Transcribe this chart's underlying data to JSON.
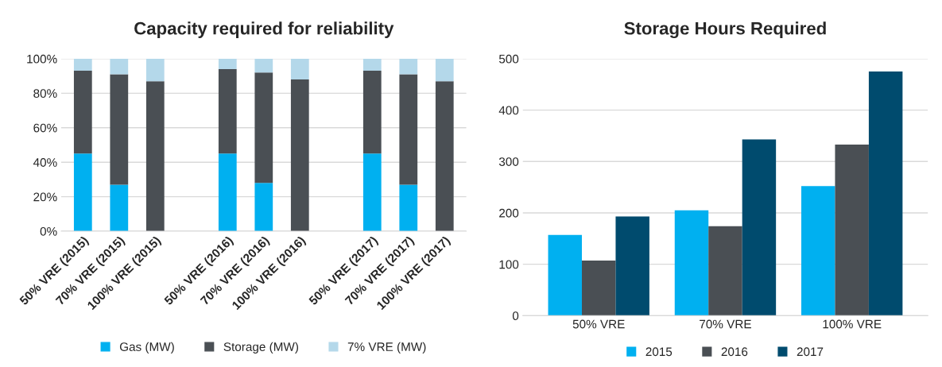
{
  "chart_data": [
    {
      "type": "bar",
      "title": "Capacity required for reliability",
      "stacked": true,
      "grid": "y",
      "legend": "bottom",
      "categories": [
        "50% VRE (2015)",
        "70% VRE (2015)",
        "100% VRE (2015)",
        null,
        "50% VRE (2016)",
        "70% VRE (2016)",
        "100% VRE (2016)",
        null,
        "50% VRE (2017)",
        "70% VRE (2017)",
        "100% VRE (2017)"
      ],
      "series": [
        {
          "name": "Gas (MW)",
          "color": "#00b0f0",
          "values": [
            45,
            27,
            0,
            null,
            45,
            28,
            0,
            null,
            45,
            27,
            0
          ]
        },
        {
          "name": "Storage (MW)",
          "color": "#4a4f54",
          "values": [
            48,
            64,
            87,
            null,
            49,
            64,
            88,
            null,
            48,
            64,
            87
          ]
        },
        {
          "name": "7% VRE (MW)",
          "color": "#b4d8ea",
          "values": [
            7,
            9,
            13,
            null,
            6,
            8,
            12,
            null,
            7,
            9,
            13
          ]
        }
      ],
      "ylim": [
        0,
        100
      ],
      "yticks": [
        {
          "value": 0,
          "label": "0%"
        },
        {
          "value": 20,
          "label": "20%"
        },
        {
          "value": 40,
          "label": "40%"
        },
        {
          "value": 60,
          "label": "60%"
        },
        {
          "value": 80,
          "label": "80%"
        },
        {
          "value": 100,
          "label": "100%"
        }
      ]
    },
    {
      "type": "bar",
      "title": "Storage Hours Required",
      "grid": "y",
      "legend": "bottom",
      "categories": [
        "50% VRE",
        "70% VRE",
        "100% VRE"
      ],
      "series": [
        {
          "name": "2015",
          "color": "#00b0f0",
          "values": [
            157,
            205,
            252
          ]
        },
        {
          "name": "2016",
          "color": "#4a4f54",
          "values": [
            107,
            174,
            333
          ]
        },
        {
          "name": "2017",
          "color": "#004b6e",
          "values": [
            193,
            343,
            475
          ]
        }
      ],
      "ylim": [
        0,
        500
      ],
      "yticks": [
        0,
        100,
        200,
        300,
        400,
        500
      ]
    }
  ]
}
